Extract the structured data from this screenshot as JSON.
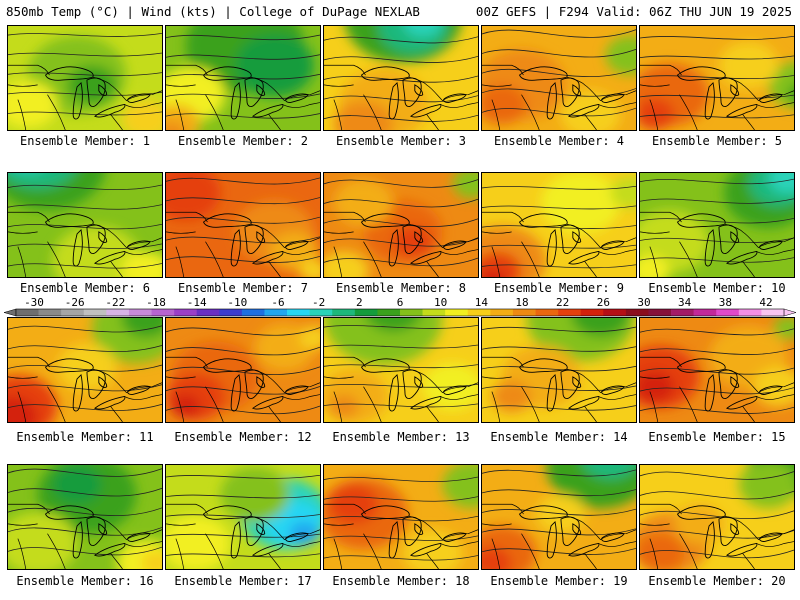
{
  "header": {
    "left": "850mb Temp (°C) | Wind (kts) | College of DuPage NEXLAB",
    "right": "00Z GEFS | F294 Valid: 06Z THU JUN 19 2025"
  },
  "colorbar": {
    "ticks": [
      "-30",
      "-26",
      "-22",
      "-18",
      "-14",
      "-10",
      "-6",
      "-2",
      "2",
      "6",
      "10",
      "14",
      "18",
      "22",
      "26",
      "30",
      "34",
      "38",
      "42"
    ],
    "colors": [
      "#6e6e6e",
      "#8a8a8a",
      "#a5a5a5",
      "#c0c0c0",
      "#d7b3e6",
      "#c88bd9",
      "#b764d0",
      "#9b3fc7",
      "#6a2fc2",
      "#3d3dcd",
      "#1f6fe0",
      "#22a6ef",
      "#27d6f3",
      "#2ad3b9",
      "#1eb87b",
      "#149c3c",
      "#3aa11c",
      "#84c11a",
      "#c4dc1b",
      "#f2ef20",
      "#f6cf1a",
      "#f3ad15",
      "#ee8a13",
      "#ea6710",
      "#e5400e",
      "#d4200c",
      "#b50e16",
      "#8b0d1d",
      "#86113a",
      "#a31a67",
      "#c2289a",
      "#e04acb",
      "#f48fe6",
      "#f9c5f2"
    ]
  },
  "chart_data": {
    "type": "heatmap",
    "title": "850mb Temp (°C) | Wind (kts)",
    "units": "°C",
    "colorbar_range": [
      -30,
      42
    ],
    "members": [
      {
        "label": "Ensemble Member: 1",
        "base": "#c4dc1b",
        "blobs": [
          [
            "#84c11a",
            70,
            50,
            50
          ],
          [
            "#3aa11c",
            85,
            60,
            25
          ],
          [
            "#f2ef20",
            20,
            80,
            30
          ],
          [
            "#f6cf1a",
            140,
            95,
            25
          ]
        ]
      },
      {
        "label": "Ensemble Member: 2",
        "base": "#84c11a",
        "blobs": [
          [
            "#3aa11c",
            80,
            20,
            60
          ],
          [
            "#149c3c",
            110,
            40,
            40
          ],
          [
            "#f2ef20",
            25,
            70,
            35
          ],
          [
            "#f3ad15",
            10,
            100,
            25
          ],
          [
            "#ee8a13",
            5,
            110,
            15
          ]
        ]
      },
      {
        "label": "Ensemble Member: 3",
        "base": "#f6cf1a",
        "blobs": [
          [
            "#3aa11c",
            80,
            -10,
            60
          ],
          [
            "#1eb87b",
            90,
            0,
            35
          ],
          [
            "#2ad3b9",
            100,
            -5,
            20
          ],
          [
            "#f3ad15",
            60,
            80,
            45
          ],
          [
            "#ee8a13",
            40,
            100,
            30
          ]
        ]
      },
      {
        "label": "Ensemble Member: 4",
        "base": "#f3ad15",
        "blobs": [
          [
            "#ee8a13",
            40,
            60,
            45
          ],
          [
            "#ea6710",
            20,
            80,
            25
          ],
          [
            "#84c11a",
            150,
            30,
            25
          ],
          [
            "#f6cf1a",
            110,
            90,
            30
          ]
        ]
      },
      {
        "label": "Ensemble Member: 5",
        "base": "#f3ad15",
        "blobs": [
          [
            "#ea6710",
            30,
            70,
            40
          ],
          [
            "#e5400e",
            15,
            90,
            20
          ],
          [
            "#84c11a",
            160,
            60,
            30
          ],
          [
            "#3aa11c",
            165,
            70,
            15
          ],
          [
            "#f6cf1a",
            110,
            40,
            30
          ]
        ]
      },
      {
        "label": "Ensemble Member: 6",
        "base": "#84c11a",
        "blobs": [
          [
            "#3aa11c",
            40,
            -10,
            60
          ],
          [
            "#1eb87b",
            30,
            -20,
            45
          ],
          [
            "#2ad3b9",
            20,
            -25,
            30
          ],
          [
            "#22a6ef",
            10,
            -25,
            20
          ],
          [
            "#c4dc1b",
            90,
            90,
            45
          ],
          [
            "#f2ef20",
            140,
            100,
            25
          ]
        ]
      },
      {
        "label": "Ensemble Member: 7",
        "base": "#ea6710",
        "blobs": [
          [
            "#e5400e",
            20,
            20,
            35
          ],
          [
            "#ee8a13",
            110,
            60,
            40
          ],
          [
            "#f3ad15",
            130,
            80,
            25
          ],
          [
            "#f6cf1a",
            150,
            100,
            15
          ]
        ]
      },
      {
        "label": "Ensemble Member: 8",
        "base": "#ee8a13",
        "blobs": [
          [
            "#ea6710",
            80,
            60,
            40
          ],
          [
            "#e5400e",
            90,
            70,
            20
          ],
          [
            "#84c11a",
            150,
            10,
            20
          ],
          [
            "#f3ad15",
            40,
            30,
            30
          ],
          [
            "#f6cf1a",
            20,
            100,
            25
          ]
        ]
      },
      {
        "label": "Ensemble Member: 9",
        "base": "#f6cf1a",
        "blobs": [
          [
            "#ee8a13",
            20,
            90,
            45
          ],
          [
            "#e5400e",
            15,
            100,
            25
          ],
          [
            "#d4200c",
            10,
            110,
            15
          ],
          [
            "#f2ef20",
            100,
            30,
            40
          ],
          [
            "#c4dc1b",
            150,
            20,
            20
          ]
        ]
      },
      {
        "label": "Ensemble Member: 10",
        "base": "#84c11a",
        "blobs": [
          [
            "#3aa11c",
            130,
            20,
            45
          ],
          [
            "#1eb87b",
            140,
            10,
            30
          ],
          [
            "#2ad3b9",
            150,
            5,
            20
          ],
          [
            "#c4dc1b",
            30,
            70,
            40
          ],
          [
            "#f2ef20",
            10,
            100,
            20
          ]
        ]
      },
      {
        "label": "Ensemble Member: 11",
        "base": "#f3ad15",
        "blobs": [
          [
            "#e5400e",
            10,
            90,
            40
          ],
          [
            "#d4200c",
            5,
            100,
            25
          ],
          [
            "#84c11a",
            130,
            10,
            45
          ],
          [
            "#3aa11c",
            140,
            0,
            25
          ],
          [
            "#f6cf1a",
            80,
            50,
            30
          ]
        ]
      },
      {
        "label": "Ensemble Member: 12",
        "base": "#ee8a13",
        "blobs": [
          [
            "#ea6710",
            50,
            60,
            45
          ],
          [
            "#e5400e",
            30,
            80,
            30
          ],
          [
            "#d4200c",
            20,
            90,
            15
          ],
          [
            "#f3ad15",
            120,
            30,
            30
          ],
          [
            "#f6cf1a",
            150,
            20,
            15
          ]
        ]
      },
      {
        "label": "Ensemble Member: 13",
        "base": "#f6cf1a",
        "blobs": [
          [
            "#84c11a",
            60,
            0,
            60
          ],
          [
            "#3aa11c",
            70,
            -10,
            30
          ],
          [
            "#f3ad15",
            30,
            80,
            35
          ],
          [
            "#ee8a13",
            20,
            90,
            15
          ],
          [
            "#f2ef20",
            130,
            70,
            30
          ]
        ]
      },
      {
        "label": "Ensemble Member: 14",
        "base": "#f6cf1a",
        "blobs": [
          [
            "#84c11a",
            100,
            0,
            55
          ],
          [
            "#3aa11c",
            120,
            -5,
            30
          ],
          [
            "#f3ad15",
            60,
            60,
            40
          ],
          [
            "#ee8a13",
            30,
            80,
            20
          ]
        ]
      },
      {
        "label": "Ensemble Member: 15",
        "base": "#ee8a13",
        "blobs": [
          [
            "#e5400e",
            20,
            60,
            40
          ],
          [
            "#d4200c",
            15,
            70,
            20
          ],
          [
            "#f3ad15",
            110,
            40,
            40
          ],
          [
            "#f6cf1a",
            140,
            70,
            25
          ],
          [
            "#84c11a",
            150,
            10,
            15
          ]
        ]
      },
      {
        "label": "Ensemble Member: 16",
        "base": "#84c11a",
        "blobs": [
          [
            "#3aa11c",
            80,
            30,
            50
          ],
          [
            "#149c3c",
            70,
            20,
            25
          ],
          [
            "#c4dc1b",
            30,
            80,
            40
          ],
          [
            "#f2ef20",
            140,
            100,
            30
          ],
          [
            "#f6cf1a",
            150,
            100,
            15
          ]
        ]
      },
      {
        "label": "Ensemble Member: 17",
        "base": "#c4dc1b",
        "blobs": [
          [
            "#2ad3b9",
            120,
            50,
            45
          ],
          [
            "#27d6f3",
            130,
            60,
            30
          ],
          [
            "#22a6ef",
            140,
            70,
            15
          ],
          [
            "#84c11a",
            90,
            30,
            35
          ],
          [
            "#f2ef20",
            30,
            80,
            35
          ]
        ]
      },
      {
        "label": "Ensemble Member: 18",
        "base": "#f3ad15",
        "blobs": [
          [
            "#ea6710",
            40,
            50,
            45
          ],
          [
            "#e5400e",
            30,
            40,
            25
          ],
          [
            "#84c11a",
            150,
            20,
            30
          ],
          [
            "#f6cf1a",
            110,
            90,
            30
          ]
        ]
      },
      {
        "label": "Ensemble Member: 19",
        "base": "#f3ad15",
        "blobs": [
          [
            "#3aa11c",
            120,
            0,
            55
          ],
          [
            "#1eb87b",
            130,
            -10,
            30
          ],
          [
            "#ea6710",
            20,
            90,
            35
          ],
          [
            "#e5400e",
            10,
            100,
            20
          ],
          [
            "#f6cf1a",
            80,
            50,
            25
          ]
        ]
      },
      {
        "label": "Ensemble Member: 20",
        "base": "#f6cf1a",
        "blobs": [
          [
            "#3aa11c",
            150,
            0,
            40
          ],
          [
            "#84c11a",
            130,
            20,
            30
          ],
          [
            "#ee8a13",
            30,
            80,
            40
          ],
          [
            "#ea6710",
            20,
            90,
            25
          ],
          [
            "#f3ad15",
            60,
            60,
            25
          ]
        ]
      }
    ]
  }
}
